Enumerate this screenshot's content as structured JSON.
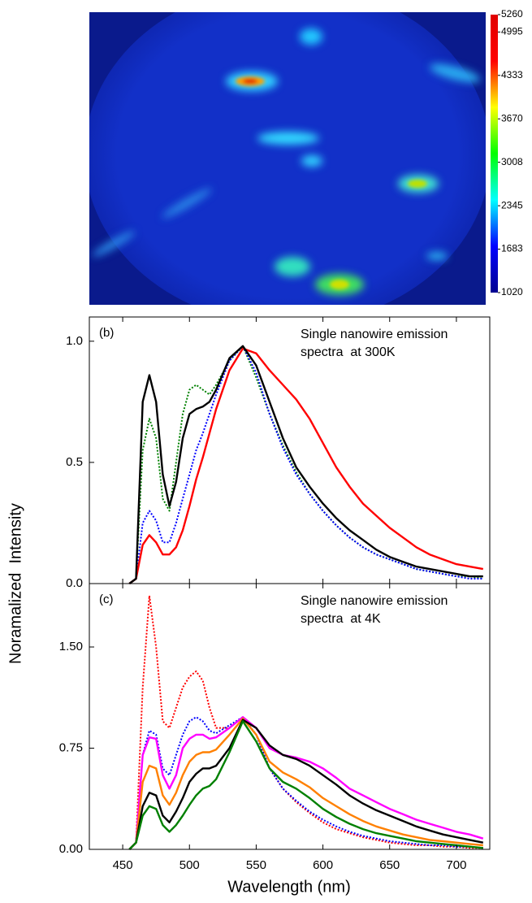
{
  "xlabel": "Wavelength (nm)",
  "ylabel": "Noramalized  Intensity",
  "chart_data": [
    {
      "type": "heatmap",
      "colorbar": {
        "clim": [
          1020,
          5260
        ],
        "ticks": [
          5260,
          4995,
          4333,
          3670,
          3008,
          2345,
          1683,
          1020
        ],
        "colors": [
          "#00008f",
          "#0000ff",
          "#00ffff",
          "#00ff00",
          "#ffff00",
          "#ff0000",
          "#e00000"
        ]
      }
    },
    {
      "type": "line",
      "panel_label": "(b)",
      "annotation": [
        "Single nanowire emission",
        "spectra  at 300K"
      ],
      "x": [
        455,
        460,
        465,
        470,
        475,
        480,
        485,
        490,
        495,
        500,
        505,
        510,
        515,
        520,
        530,
        540,
        550,
        560,
        570,
        580,
        590,
        600,
        610,
        620,
        630,
        640,
        650,
        660,
        670,
        680,
        690,
        700,
        710,
        720
      ],
      "xlim": [
        425,
        725
      ],
      "xticks": [
        450,
        500,
        550,
        600,
        650,
        700
      ],
      "xtick_labels": false,
      "ylim": [
        0,
        1.1
      ],
      "yticks": [
        {
          "value": 0,
          "label": "0.0"
        },
        {
          "value": 0.5,
          "label": "0.5"
        },
        {
          "value": 1,
          "label": "1.0"
        }
      ],
      "series": [
        {
          "color": "#008000",
          "style": "dotted",
          "values": [
            0,
            0.02,
            0.55,
            0.68,
            0.6,
            0.35,
            0.3,
            0.5,
            0.7,
            0.8,
            0.82,
            0.8,
            0.78,
            0.82,
            0.92,
            0.98,
            0.85,
            0.7,
            0.57,
            0.46,
            0.37,
            0.3,
            0.24,
            0.19,
            0.15,
            0.12,
            0.1,
            0.08,
            0.06,
            0.05,
            0.04,
            0.03,
            0.03,
            0.02
          ]
        },
        {
          "color": "#0000ff",
          "style": "dotted",
          "values": [
            0,
            0.02,
            0.25,
            0.3,
            0.26,
            0.17,
            0.17,
            0.25,
            0.35,
            0.45,
            0.55,
            0.62,
            0.7,
            0.78,
            0.92,
            0.98,
            0.87,
            0.7,
            0.56,
            0.45,
            0.37,
            0.3,
            0.24,
            0.19,
            0.15,
            0.12,
            0.1,
            0.08,
            0.06,
            0.05,
            0.04,
            0.03,
            0.02,
            0.02
          ]
        },
        {
          "color": "#ff0000",
          "style": "solid",
          "values": [
            0,
            0.02,
            0.16,
            0.2,
            0.17,
            0.12,
            0.12,
            0.15,
            0.22,
            0.32,
            0.43,
            0.52,
            0.62,
            0.72,
            0.88,
            0.97,
            0.95,
            0.88,
            0.82,
            0.76,
            0.68,
            0.58,
            0.48,
            0.4,
            0.33,
            0.28,
            0.23,
            0.19,
            0.15,
            0.12,
            0.1,
            0.08,
            0.07,
            0.06
          ]
        },
        {
          "color": "#000000",
          "style": "solid",
          "values": [
            0,
            0.02,
            0.75,
            0.86,
            0.75,
            0.45,
            0.32,
            0.42,
            0.6,
            0.7,
            0.72,
            0.73,
            0.75,
            0.8,
            0.93,
            0.98,
            0.9,
            0.75,
            0.6,
            0.48,
            0.4,
            0.33,
            0.27,
            0.22,
            0.18,
            0.14,
            0.11,
            0.09,
            0.07,
            0.06,
            0.05,
            0.04,
            0.03,
            0.03
          ]
        }
      ]
    },
    {
      "type": "line",
      "panel_label": "(c)",
      "annotation": [
        "Single nanowire emission",
        "spectra  at 4K"
      ],
      "x": [
        455,
        460,
        465,
        470,
        475,
        480,
        485,
        490,
        495,
        500,
        505,
        510,
        515,
        520,
        530,
        540,
        550,
        560,
        570,
        580,
        590,
        600,
        610,
        620,
        630,
        640,
        650,
        660,
        670,
        680,
        690,
        700,
        710,
        720
      ],
      "xlim": [
        425,
        725
      ],
      "xticks": [
        450,
        500,
        550,
        600,
        650,
        700
      ],
      "xtick_labels": true,
      "ylim": [
        0,
        1.97
      ],
      "yticks": [
        {
          "value": 0,
          "label": "0.00"
        },
        0.75,
        {
          "value": 1.5,
          "label": "1.50"
        }
      ],
      "series": [
        {
          "color": "#ff0000",
          "style": "dotted",
          "values": [
            0,
            0.05,
            1.2,
            1.88,
            1.5,
            0.95,
            0.9,
            1.05,
            1.2,
            1.28,
            1.32,
            1.25,
            1.05,
            0.9,
            0.9,
            0.98,
            0.85,
            0.6,
            0.45,
            0.35,
            0.27,
            0.2,
            0.15,
            0.12,
            0.09,
            0.07,
            0.05,
            0.04,
            0.03,
            0.03,
            0.02,
            0.02,
            0.01,
            0.01
          ]
        },
        {
          "color": "#0000ff",
          "style": "dotted",
          "values": [
            0,
            0.05,
            0.7,
            0.88,
            0.85,
            0.6,
            0.55,
            0.7,
            0.85,
            0.95,
            0.98,
            0.95,
            0.88,
            0.86,
            0.92,
            0.98,
            0.85,
            0.6,
            0.45,
            0.36,
            0.28,
            0.22,
            0.17,
            0.13,
            0.1,
            0.08,
            0.06,
            0.05,
            0.04,
            0.03,
            0.03,
            0.02,
            0.02,
            0.01
          ]
        },
        {
          "color": "#ff00ff",
          "style": "solid",
          "values": [
            0,
            0.05,
            0.7,
            0.83,
            0.82,
            0.55,
            0.45,
            0.55,
            0.75,
            0.82,
            0.85,
            0.85,
            0.82,
            0.83,
            0.9,
            0.98,
            0.9,
            0.75,
            0.7,
            0.68,
            0.65,
            0.6,
            0.53,
            0.45,
            0.4,
            0.35,
            0.3,
            0.26,
            0.22,
            0.19,
            0.16,
            0.13,
            0.11,
            0.08
          ]
        },
        {
          "color": "#ff8000",
          "style": "solid",
          "values": [
            0,
            0.05,
            0.5,
            0.62,
            0.6,
            0.4,
            0.33,
            0.42,
            0.55,
            0.65,
            0.7,
            0.72,
            0.72,
            0.74,
            0.85,
            0.97,
            0.85,
            0.65,
            0.57,
            0.52,
            0.46,
            0.38,
            0.32,
            0.26,
            0.21,
            0.17,
            0.14,
            0.11,
            0.09,
            0.07,
            0.06,
            0.05,
            0.04,
            0.03
          ]
        },
        {
          "color": "#000000",
          "style": "solid",
          "values": [
            0,
            0.05,
            0.32,
            0.42,
            0.4,
            0.25,
            0.2,
            0.28,
            0.38,
            0.5,
            0.56,
            0.6,
            0.6,
            0.62,
            0.75,
            0.96,
            0.9,
            0.77,
            0.7,
            0.67,
            0.62,
            0.55,
            0.48,
            0.4,
            0.34,
            0.29,
            0.25,
            0.21,
            0.17,
            0.14,
            0.11,
            0.09,
            0.07,
            0.05
          ]
        },
        {
          "color": "#008000",
          "style": "solid",
          "values": [
            0,
            0.05,
            0.25,
            0.32,
            0.3,
            0.18,
            0.13,
            0.18,
            0.25,
            0.33,
            0.4,
            0.45,
            0.47,
            0.52,
            0.72,
            0.95,
            0.8,
            0.6,
            0.5,
            0.45,
            0.38,
            0.3,
            0.24,
            0.19,
            0.15,
            0.12,
            0.1,
            0.08,
            0.06,
            0.05,
            0.04,
            0.03,
            0.02,
            0.01
          ]
        }
      ]
    }
  ]
}
